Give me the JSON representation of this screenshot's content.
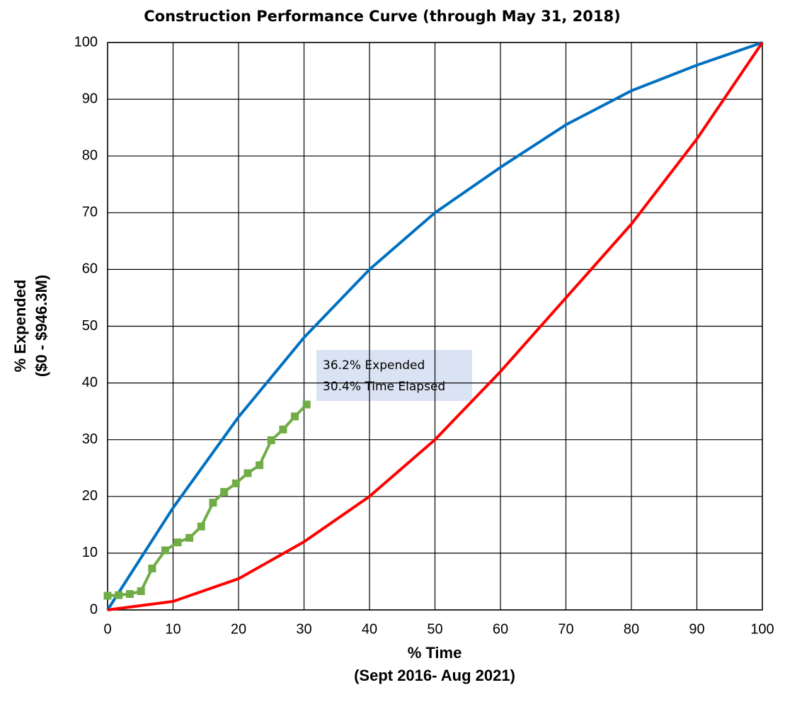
{
  "chart_data": {
    "type": "line",
    "title": "Construction Performance Curve (through May 31, 2018)",
    "x_label": [
      "% Time",
      "(Sept 2016- Aug 2021)"
    ],
    "y_label": [
      "% Expended",
      "($0 - $946.3M)"
    ],
    "annotations": [
      "36.2% Expended",
      "30.4% Time Elapsed"
    ],
    "xlim": [
      0,
      100
    ],
    "ylim": [
      0,
      100
    ],
    "xticks": [
      0,
      10,
      20,
      30,
      40,
      50,
      60,
      70,
      80,
      90,
      100
    ],
    "yticks": [
      0,
      10,
      20,
      30,
      40,
      50,
      60,
      70,
      80,
      90,
      100
    ],
    "grid": true,
    "series": [
      {
        "color": "#0070c0",
        "markers": false,
        "x": [
          0,
          10,
          20,
          30,
          40,
          50,
          60,
          70,
          80,
          90,
          100
        ],
        "values": [
          0,
          18,
          34,
          48,
          60,
          70,
          78,
          85.5,
          91.5,
          96,
          100
        ]
      },
      {
        "color": "#ff0000",
        "markers": false,
        "x": [
          0,
          10,
          20,
          30,
          40,
          50,
          60,
          70,
          80,
          90,
          100
        ],
        "values": [
          0,
          1.5,
          5.5,
          12,
          20,
          30,
          42,
          55,
          68,
          83,
          100
        ]
      },
      {
        "color": "#70ad47",
        "markers": true,
        "x": [
          0,
          1.7,
          3.4,
          5.1,
          6.8,
          8.8,
          10.7,
          12.5,
          14.3,
          16.1,
          17.8,
          19.6,
          21.4,
          23.2,
          25,
          26.8,
          28.6,
          30.4
        ],
        "values": [
          2.5,
          2.6,
          2.8,
          3.3,
          7.3,
          10.5,
          11.9,
          12.7,
          14.7,
          18.9,
          20.8,
          22.3,
          24.1,
          25.5,
          29.9,
          31.8,
          34.1,
          36.2
        ]
      }
    ]
  }
}
